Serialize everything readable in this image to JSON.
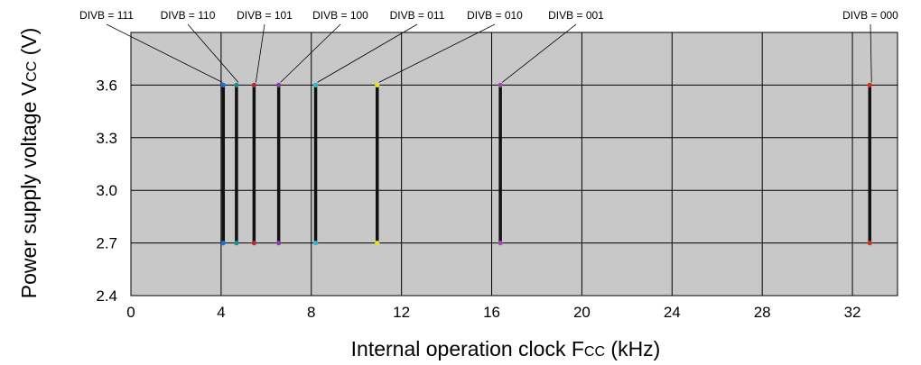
{
  "chart_data": {
    "type": "line",
    "xlabel": "Internal operation clock F",
    "xlabel_sub": "CC",
    "xlabel_unit": " (kHz)",
    "ylabel": "Power supply voltage V",
    "ylabel_sub": "CC",
    "ylabel_unit": " (V)",
    "xlim": [
      0,
      34
    ],
    "ylim": [
      2.4,
      3.9
    ],
    "x_ticks": [
      "0",
      "4",
      "8",
      "12",
      "16",
      "20",
      "24",
      "28",
      "32"
    ],
    "y_ticks": [
      "2.4",
      "2.7",
      "3.0",
      "3.3",
      "3.6"
    ],
    "grid": true,
    "background_color": "#c8c8c8",
    "series": [
      {
        "name": "DIVB = 111",
        "x": [
          4.096,
          4.096
        ],
        "y": [
          2.7,
          3.6
        ],
        "color": "#1f6fd0"
      },
      {
        "name": "DIVB = 110",
        "x": [
          4.681,
          4.681
        ],
        "y": [
          2.7,
          3.6
        ],
        "color": "#1e8c8a"
      },
      {
        "name": "DIVB = 101",
        "x": [
          5.461,
          5.461
        ],
        "y": [
          2.7,
          3.6
        ],
        "color": "#b0302a"
      },
      {
        "name": "DIVB = 100",
        "x": [
          6.554,
          6.554
        ],
        "y": [
          2.7,
          3.6
        ],
        "color": "#8d3aa6"
      },
      {
        "name": "DIVB = 011",
        "x": [
          8.192,
          8.192
        ],
        "y": [
          2.7,
          3.6
        ],
        "color": "#2fb8c8"
      },
      {
        "name": "DIVB = 010",
        "x": [
          10.923,
          10.923
        ],
        "y": [
          2.7,
          3.6
        ],
        "color": "#e8e020"
      },
      {
        "name": "DIVB = 001",
        "x": [
          16.384,
          16.384
        ],
        "y": [
          2.7,
          3.6
        ],
        "color": "#a04bb0"
      },
      {
        "name": "DIVB = 000",
        "x": [
          32.768,
          32.768
        ],
        "y": [
          2.7,
          3.6
        ],
        "color": "#d03020"
      }
    ]
  }
}
